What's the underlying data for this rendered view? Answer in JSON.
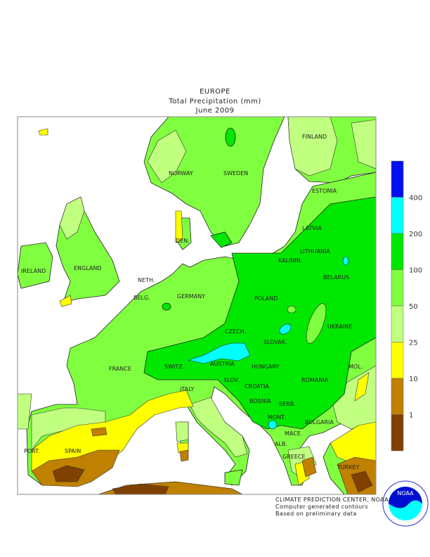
{
  "title": {
    "region": "EUROPE",
    "variable": "Total Precipitation (mm)",
    "period": "June 2009"
  },
  "legend": {
    "bins": [
      {
        "label": "400",
        "color": "#0010f0"
      },
      {
        "label": "200",
        "color": "#00ffff"
      },
      {
        "label": "100",
        "color": "#00e800"
      },
      {
        "label": "50",
        "color": "#80ff40"
      },
      {
        "label": "25",
        "color": "#c0ff80"
      },
      {
        "label": "10",
        "color": "#ffff00"
      },
      {
        "label": "1",
        "color": "#c08000"
      },
      {
        "label": "",
        "color": "#804000"
      }
    ]
  },
  "countries": [
    "FINLAND",
    "NORWAY",
    "SWEDEN",
    "ESTONIA",
    "LATVIA",
    "DEN.",
    "LITHUANIA",
    "KALININ.",
    "BELARUS",
    "IRELAND",
    "ENGLAND",
    "NETH.",
    "GERMANY",
    "POLAND",
    "BELG.",
    "CZECH.",
    "UKRAINE",
    "SLOVAK.",
    "FRANCE",
    "SWITZ.",
    "AUSTRIA",
    "HUNGARY",
    "MOL.",
    "ROMANIA",
    "SLOV.",
    "CROATIA",
    "ITALY",
    "BOSNIA",
    "SERB.",
    "BULGARIA",
    "MONT.",
    "MACE.",
    "ALB.",
    "PORT.",
    "SPAIN",
    "GREECE",
    "TURKEY"
  ],
  "credits": {
    "line1": "CLIMATE PREDICTION CENTER, NOAA",
    "line2": "Computer generated contours",
    "line3": "Based on preliminary data"
  },
  "logo": {
    "text": "NOAA",
    "ring": "NATIONAL OCEANIC AND ATMOSPHERIC ADMINISTRATION · U.S. DEPARTMENT OF COMMERCE"
  }
}
